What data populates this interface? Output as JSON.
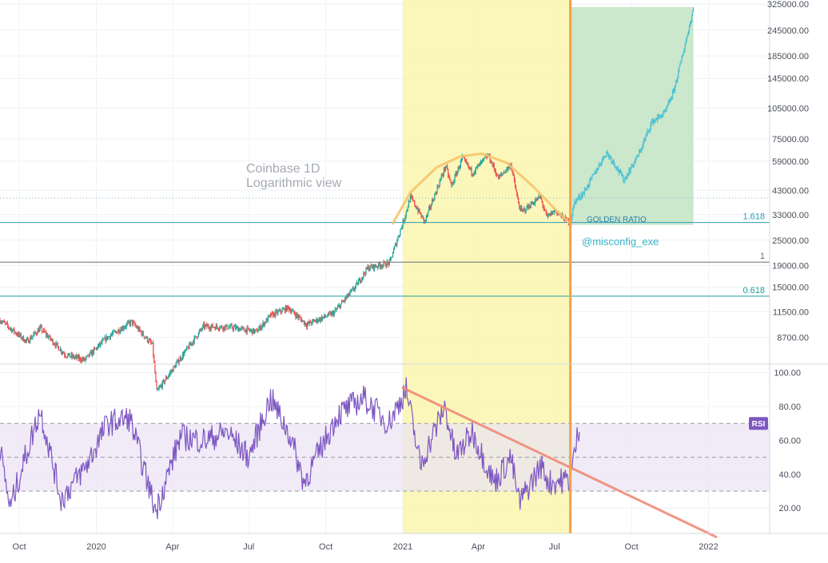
{
  "chart_data": [
    {
      "type": "candlestick",
      "scale": "log",
      "ylim": [
        6500,
        340000
      ],
      "xlim": [
        "2019-09-08",
        "2022-03-15"
      ],
      "y_ticks": [
        "325000.00",
        "245000.00",
        "185000.00",
        "145000.00",
        "105000.00",
        "75000.00",
        "59000.00",
        "43000.00",
        "33000.00",
        "25000.00",
        "19000.00",
        "15000.00",
        "11500.00",
        "8700.00"
      ],
      "annotations": {
        "title_line1": "Coinbase 1D",
        "title_line2": "Logarithmic view",
        "golden_ratio": "GOLDEN RATIO",
        "author": "@misconfig_exe",
        "fib_1618": "1.618",
        "fib_1": "1",
        "fib_0618": "0.618"
      },
      "fib_levels": [
        {
          "label": "1.618",
          "value": 30300
        },
        {
          "label": "1",
          "value": 19700
        },
        {
          "label": "0.618",
          "value": 13600
        }
      ],
      "dotted_level": 39500,
      "highlight_span": [
        "2021-01-01",
        "2021-07-20"
      ],
      "vertical_marker": "2021-07-20",
      "projection_box": {
        "x": [
          "2021-07-20",
          "2021-12-14"
        ],
        "y": [
          29500,
          315000
        ]
      },
      "price_path": [
        [
          "2019-09-08",
          10500
        ],
        [
          "2019-10-10",
          8300
        ],
        [
          "2019-10-26",
          9600
        ],
        [
          "2019-11-25",
          7200
        ],
        [
          "2019-12-18",
          6800
        ],
        [
          "2020-01-14",
          8700
        ],
        [
          "2020-02-12",
          10300
        ],
        [
          "2020-03-08",
          8000
        ],
        [
          "2020-03-13",
          4800
        ],
        [
          "2020-04-10",
          6900
        ],
        [
          "2020-05-08",
          9800
        ],
        [
          "2020-06-10",
          9700
        ],
        [
          "2020-07-10",
          9250
        ],
        [
          "2020-07-27",
          11000
        ],
        [
          "2020-08-17",
          12000
        ],
        [
          "2020-09-08",
          10000
        ],
        [
          "2020-10-10",
          11300
        ],
        [
          "2020-11-05",
          15000
        ],
        [
          "2020-11-20",
          18500
        ],
        [
          "2020-12-16",
          19500
        ],
        [
          "2021-01-03",
          32000
        ],
        [
          "2021-01-10",
          40000
        ],
        [
          "2021-01-27",
          30500
        ],
        [
          "2021-02-21",
          56000
        ],
        [
          "2021-02-28",
          45000
        ],
        [
          "2021-03-13",
          61000
        ],
        [
          "2021-03-25",
          52000
        ],
        [
          "2021-04-13",
          63000
        ],
        [
          "2021-04-25",
          49000
        ],
        [
          "2021-05-10",
          57000
        ],
        [
          "2021-05-19",
          37000
        ],
        [
          "2021-05-23",
          34000
        ],
        [
          "2021-06-14",
          40000
        ],
        [
          "2021-06-22",
          32000
        ],
        [
          "2021-07-01",
          34500
        ],
        [
          "2021-07-20",
          30000
        ],
        [
          "2021-07-25",
          38000
        ],
        [
          "2021-08-05",
          42000
        ],
        [
          "2021-09-01",
          65000
        ],
        [
          "2021-09-10",
          58000
        ],
        [
          "2021-09-22",
          48000
        ],
        [
          "2021-10-10",
          64000
        ],
        [
          "2021-10-25",
          90000
        ],
        [
          "2021-11-10",
          100000
        ],
        [
          "2021-11-20",
          125000
        ],
        [
          "2021-11-30",
          180000
        ],
        [
          "2021-12-14",
          310000
        ]
      ],
      "arc_points": [
        [
          "2020-12-20",
          30000
        ],
        [
          "2021-01-10",
          42000
        ],
        [
          "2021-02-10",
          55000
        ],
        [
          "2021-03-10",
          62000
        ],
        [
          "2021-04-05",
          64000
        ],
        [
          "2021-05-05",
          58000
        ],
        [
          "2021-06-05",
          45000
        ],
        [
          "2021-07-05",
          34000
        ],
        [
          "2021-07-20",
          30000
        ]
      ]
    },
    {
      "type": "line",
      "name": "RSI",
      "ylim": [
        5,
        105
      ],
      "y_ticks": [
        "100.00",
        "80.00",
        "60.00",
        "40.00",
        "20.00"
      ],
      "levels": [
        70,
        50,
        30
      ],
      "badge": "RSI",
      "x_ticks": [
        {
          "label": "Oct",
          "date": "2019-10-01"
        },
        {
          "label": "2020",
          "date": "2020-01-01"
        },
        {
          "label": "Apr",
          "date": "2020-04-01"
        },
        {
          "label": "Jul",
          "date": "2020-07-01"
        },
        {
          "label": "Oct",
          "date": "2020-10-01"
        },
        {
          "label": "2021",
          "date": "2021-01-01"
        },
        {
          "label": "Apr",
          "date": "2021-04-01"
        },
        {
          "label": "Jul",
          "date": "2021-07-01"
        },
        {
          "label": "Oct",
          "date": "2021-10-01"
        },
        {
          "label": "2022",
          "date": "2022-01-01"
        }
      ],
      "trendline": [
        [
          "2021-01-01",
          91
        ],
        [
          "2022-01-10",
          3
        ]
      ],
      "rsi_path": [
        [
          "2019-09-08",
          55
        ],
        [
          "2019-09-20",
          20
        ],
        [
          "2019-10-05",
          45
        ],
        [
          "2019-10-26",
          78
        ],
        [
          "2019-11-20",
          25
        ],
        [
          "2019-12-20",
          45
        ],
        [
          "2020-01-14",
          70
        ],
        [
          "2020-02-10",
          73
        ],
        [
          "2020-03-12",
          18
        ],
        [
          "2020-04-10",
          62
        ],
        [
          "2020-05-10",
          60
        ],
        [
          "2020-06-05",
          65
        ],
        [
          "2020-07-01",
          50
        ],
        [
          "2020-07-27",
          85
        ],
        [
          "2020-08-20",
          62
        ],
        [
          "2020-09-05",
          35
        ],
        [
          "2020-10-15",
          75
        ],
        [
          "2020-11-15",
          85
        ],
        [
          "2020-12-15",
          70
        ],
        [
          "2021-01-05",
          90
        ],
        [
          "2021-01-22",
          45
        ],
        [
          "2021-02-20",
          80
        ],
        [
          "2021-03-05",
          50
        ],
        [
          "2021-03-25",
          65
        ],
        [
          "2021-04-20",
          35
        ],
        [
          "2021-05-10",
          50
        ],
        [
          "2021-05-20",
          23
        ],
        [
          "2021-06-15",
          45
        ],
        [
          "2021-06-25",
          35
        ],
        [
          "2021-07-20",
          37
        ],
        [
          "2021-07-31",
          70
        ]
      ]
    }
  ]
}
